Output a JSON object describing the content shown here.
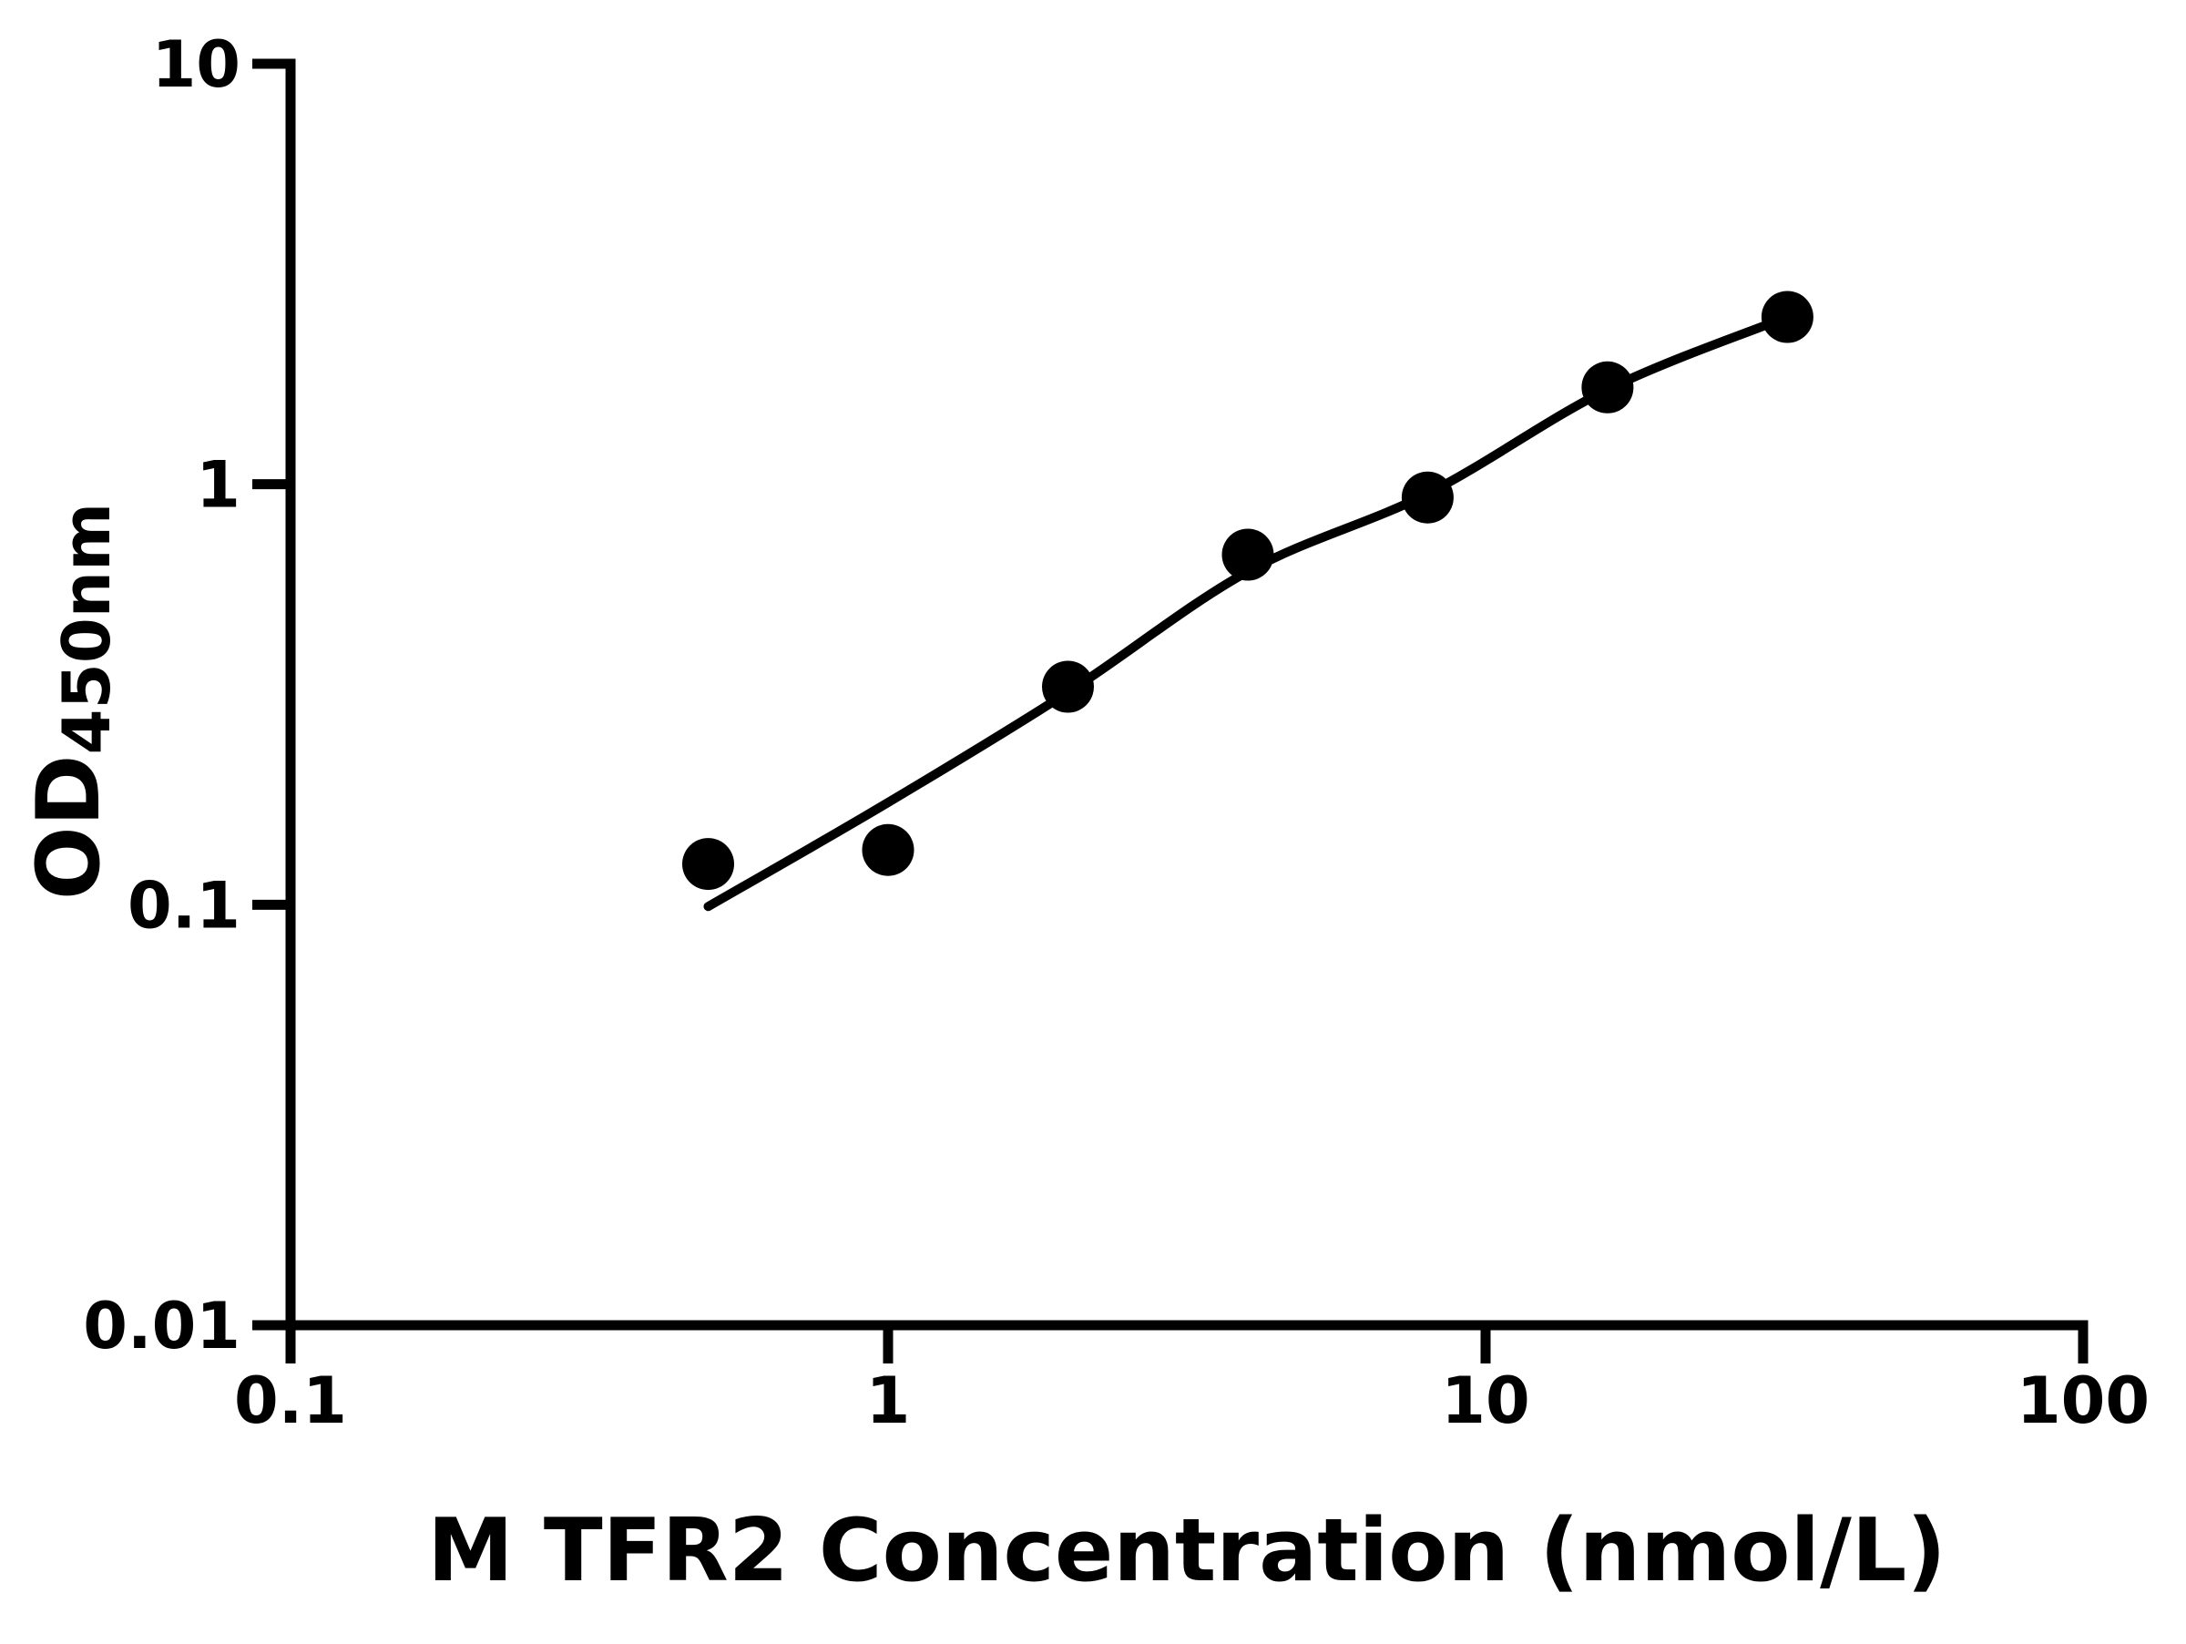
{
  "chart_data": {
    "type": "scatter",
    "title": "",
    "xlabel": "M TFR2 Concentration (nmol/L)",
    "ylabel_main": "OD",
    "ylabel_sub": "450nm",
    "x_scale": "log",
    "y_scale": "log",
    "xlim": [
      0.1,
      100
    ],
    "ylim": [
      0.01,
      10
    ],
    "grid": "off",
    "legend": "none",
    "x_ticks": [
      {
        "value": 0.1,
        "label": "0.1"
      },
      {
        "value": 1,
        "label": "1"
      },
      {
        "value": 10,
        "label": "10"
      },
      {
        "value": 100,
        "label": "100"
      }
    ],
    "y_ticks": [
      {
        "value": 10,
        "label": "10"
      },
      {
        "value": 1,
        "label": "1"
      },
      {
        "value": 0.1,
        "label": "0.1"
      },
      {
        "value": 0.01,
        "label": "0.01"
      }
    ],
    "series": [
      {
        "name": "standard-points",
        "type": "scatter",
        "marker": "filled-circle",
        "points": [
          {
            "x": 0.5,
            "y": 0.125
          },
          {
            "x": 1,
            "y": 0.135
          },
          {
            "x": 2,
            "y": 0.33
          },
          {
            "x": 4,
            "y": 0.68
          },
          {
            "x": 8,
            "y": 0.93
          },
          {
            "x": 16,
            "y": 1.7
          },
          {
            "x": 32,
            "y": 2.5
          }
        ]
      },
      {
        "name": "fit-curve",
        "type": "line",
        "points": [
          {
            "x": 0.5,
            "y": 0.099
          },
          {
            "x": 1,
            "y": 0.175
          },
          {
            "x": 2,
            "y": 0.32
          },
          {
            "x": 4,
            "y": 0.62
          },
          {
            "x": 8,
            "y": 0.95
          },
          {
            "x": 16,
            "y": 1.68
          },
          {
            "x": 32,
            "y": 2.5
          }
        ]
      }
    ],
    "colors": {
      "foreground": "#000000",
      "background": "#ffffff"
    }
  }
}
